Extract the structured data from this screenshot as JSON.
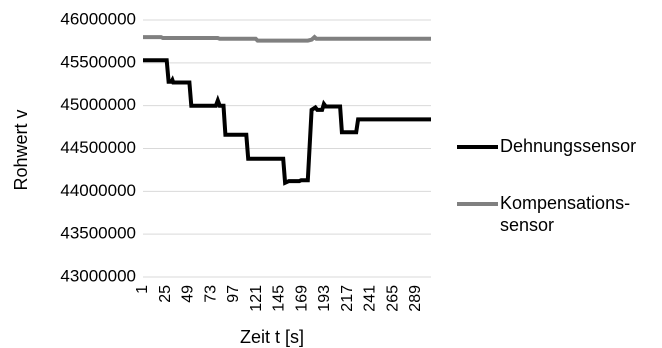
{
  "chart_data": {
    "type": "line",
    "xlabel": "Zeit t [s]",
    "ylabel": "Rohwert v",
    "ylim": [
      43000000,
      46000000
    ],
    "y_ticks": [
      "43000000",
      "43500000",
      "44000000",
      "44500000",
      "45000000",
      "45500000",
      "46000000"
    ],
    "x_ticks": [
      "1",
      "25",
      "49",
      "73",
      "97",
      "121",
      "145",
      "169",
      "193",
      "217",
      "241",
      "265",
      "289"
    ],
    "x_range": [
      1,
      305
    ],
    "grid": "horizontal",
    "legend_position": "right",
    "series": [
      {
        "name": "Dehnungssensor",
        "color": "#000000",
        "points": [
          [
            1,
            45530000
          ],
          [
            26,
            45530000
          ],
          [
            28,
            45280000
          ],
          [
            31,
            45280000
          ],
          [
            32,
            45300000
          ],
          [
            33,
            45270000
          ],
          [
            50,
            45270000
          ],
          [
            52,
            45000000
          ],
          [
            78,
            45000000
          ],
          [
            80,
            45060000
          ],
          [
            82,
            45000000
          ],
          [
            86,
            45000000
          ],
          [
            88,
            44660000
          ],
          [
            110,
            44660000
          ],
          [
            112,
            44380000
          ],
          [
            149,
            44380000
          ],
          [
            151,
            44100000
          ],
          [
            155,
            44120000
          ],
          [
            166,
            44120000
          ],
          [
            168,
            44130000
          ],
          [
            175,
            44130000
          ],
          [
            179,
            44950000
          ],
          [
            183,
            44980000
          ],
          [
            185,
            44950000
          ],
          [
            190,
            44950000
          ],
          [
            192,
            45020000
          ],
          [
            194,
            44990000
          ],
          [
            209,
            44990000
          ],
          [
            211,
            44690000
          ],
          [
            226,
            44690000
          ],
          [
            228,
            44840000
          ],
          [
            305,
            44840000
          ]
        ]
      },
      {
        "name": "Kompensations-\nsensor",
        "color": "#808080",
        "points": [
          [
            1,
            45800000
          ],
          [
            20,
            45800000
          ],
          [
            22,
            45790000
          ],
          [
            80,
            45790000
          ],
          [
            82,
            45780000
          ],
          [
            120,
            45780000
          ],
          [
            122,
            45760000
          ],
          [
            175,
            45760000
          ],
          [
            179,
            45770000
          ],
          [
            182,
            45800000
          ],
          [
            184,
            45780000
          ],
          [
            305,
            45780000
          ]
        ]
      }
    ]
  }
}
